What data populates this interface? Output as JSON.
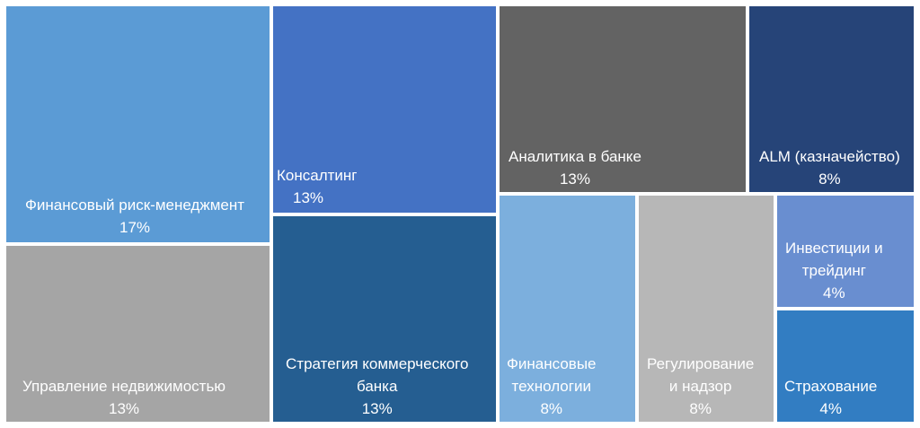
{
  "chart_data": {
    "type": "treemap",
    "title": "",
    "items": [
      {
        "label": "Финансовый риск-менеджмент",
        "label_lines": [
          "Финансовый риск-менеджмент"
        ],
        "value": 17,
        "value_label": "17%",
        "color": "#5b9bd5"
      },
      {
        "label": "Управление недвижимостью",
        "label_lines": [
          "Управление недвижимостью"
        ],
        "value": 13,
        "value_label": "13%",
        "color": "#a5a5a5"
      },
      {
        "label": "Консалтинг",
        "label_lines": [
          "Консалтинг"
        ],
        "value": 13,
        "value_label": "13%",
        "color": "#4472c4"
      },
      {
        "label": "Стратегия коммерческого банка",
        "label_lines": [
          "Стратегия коммерческого",
          "банка"
        ],
        "value": 13,
        "value_label": "13%",
        "color": "#255e91"
      },
      {
        "label": "Аналитика в банке",
        "label_lines": [
          "Аналитика в банке"
        ],
        "value": 13,
        "value_label": "13%",
        "color": "#636363"
      },
      {
        "label": "ALM (казначейство)",
        "label_lines": [
          "ALM (казначейство)"
        ],
        "value": 8,
        "value_label": "8%",
        "color": "#264478"
      },
      {
        "label": "Финансовые технологии",
        "label_lines": [
          "Финансовые",
          "технологии"
        ],
        "value": 8,
        "value_label": "8%",
        "color": "#7cafdd"
      },
      {
        "label": "Регулирование и надзор",
        "label_lines": [
          "Регулирование",
          "и надзор"
        ],
        "value": 8,
        "value_label": "8%",
        "color": "#b7b7b7"
      },
      {
        "label": "Инвестиции и трейдинг",
        "label_lines": [
          "Инвестиции и",
          "трейдинг"
        ],
        "value": 4,
        "value_label": "4%",
        "color": "#698ed0"
      },
      {
        "label": "Страхование",
        "label_lines": [
          "Страхование"
        ],
        "value": 4,
        "value_label": "4%",
        "color": "#327dc2"
      }
    ]
  }
}
